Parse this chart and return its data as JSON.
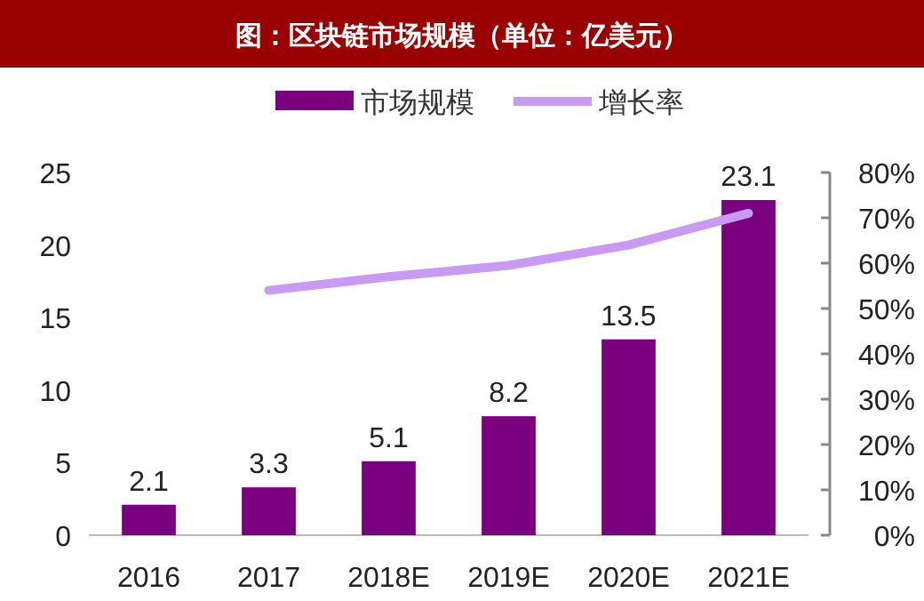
{
  "chart_data": {
    "type": "bar",
    "title": "图：区块链市场规模（单位：亿美元）",
    "categories": [
      "2016",
      "2017",
      "2018E",
      "2019E",
      "2020E",
      "2021E"
    ],
    "series": [
      {
        "name": "市场规模",
        "color": "#7b0080",
        "values": [
          2.1,
          3.3,
          5.1,
          8.2,
          13.5,
          23.1
        ],
        "value_labels": [
          "2.1",
          "3.3",
          "5.1",
          "8.2",
          "13.5",
          "23.1"
        ]
      },
      {
        "name": "增长率",
        "type": "line",
        "axis": "y2",
        "color": "#c99af2",
        "values": [
          null,
          54,
          57,
          59.5,
          64,
          71
        ]
      }
    ],
    "ylim": [
      0,
      25
    ],
    "yticks": [
      0,
      5,
      10,
      15,
      20,
      25
    ],
    "y2lim": [
      0,
      80
    ],
    "y2ticks": [
      {
        "value": 0,
        "label": "0%"
      },
      {
        "value": 10,
        "label": "10%"
      },
      {
        "value": 20,
        "label": "20%"
      },
      {
        "value": 30,
        "label": "30%"
      },
      {
        "value": 40,
        "label": "40%"
      },
      {
        "value": 50,
        "label": "50%"
      },
      {
        "value": 60,
        "label": "60%"
      },
      {
        "value": 70,
        "label": "70%"
      },
      {
        "value": 80,
        "label": "80%"
      }
    ],
    "legend": "top",
    "grid": false,
    "marker": "none",
    "line_style": "solid"
  }
}
